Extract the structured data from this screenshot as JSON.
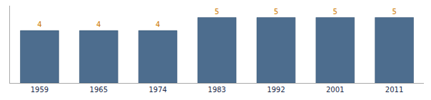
{
  "chart_data": {
    "type": "bar",
    "categories": [
      "1959",
      "1965",
      "1974",
      "1983",
      "1992",
      "2001",
      "2011"
    ],
    "values": [
      4,
      4,
      4,
      5,
      5,
      5,
      5
    ],
    "color": "#4d6d8e",
    "ylim": [
      0,
      5.9
    ],
    "data_labels": true,
    "tick_labels": "x",
    "grid": false
  }
}
